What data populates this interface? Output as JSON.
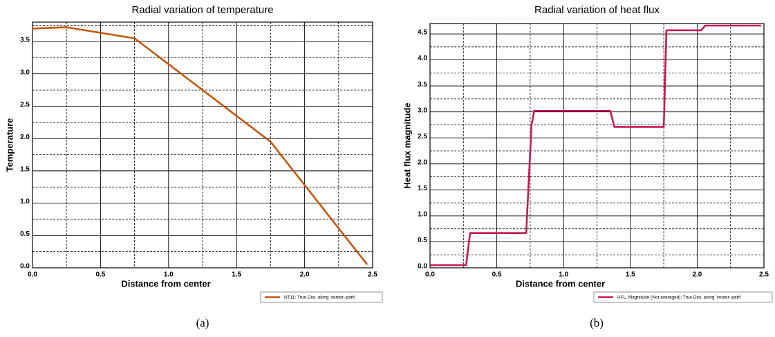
{
  "chart_data": [
    {
      "type": "line",
      "title": "Radial variation of temperature",
      "xlabel": "Distance from center",
      "ylabel": "Temperature",
      "caption": "(a)",
      "x": [
        0,
        0.25,
        0.75,
        1.75,
        2.46
      ],
      "series": [
        {
          "name": "NT11: True Dist. along 'center–path'",
          "color": "#c5560f",
          "values": [
            3.7,
            3.72,
            3.55,
            1.95,
            0.05
          ]
        }
      ],
      "xlim": [
        0,
        2.5
      ],
      "ylim": [
        0,
        3.8
      ],
      "xticks": [
        {
          "value": 0,
          "label": "0.0"
        },
        {
          "value": 0.5,
          "label": "0.5"
        },
        {
          "value": 1,
          "label": "1.0"
        },
        {
          "value": 1.5,
          "label": "1.5"
        },
        {
          "value": 2,
          "label": "2.0"
        },
        {
          "value": 2.5,
          "label": "2.5"
        }
      ],
      "yticks": [
        {
          "value": 0,
          "label": "0.0"
        },
        {
          "value": 0.5,
          "label": "0.5"
        },
        {
          "value": 1,
          "label": "1.0"
        },
        {
          "value": 1.5,
          "label": "1.5"
        },
        {
          "value": 2,
          "label": "2.0"
        },
        {
          "value": 2.5,
          "label": "2.5"
        },
        {
          "value": 3,
          "label": "3.0"
        },
        {
          "value": 3.5,
          "label": "3.5"
        }
      ],
      "xminor": [
        0.25,
        0.75,
        1.25,
        1.75,
        2.25
      ],
      "yminor": [
        0.25,
        0.75,
        1.25,
        1.75,
        2.25,
        2.75,
        3.25,
        3.75
      ],
      "grid": true,
      "legend": "bottom-right"
    },
    {
      "type": "line",
      "title": "Radial variation of heat flux",
      "xlabel": "Distance from center",
      "ylabel": "Heat flux magnitude",
      "caption": "(b)",
      "x": [
        0,
        0.27,
        0.3,
        0.72,
        0.76,
        0.78,
        1.35,
        1.38,
        1.75,
        1.77,
        2.03,
        2.06,
        2.48
      ],
      "series": [
        {
          "name": "HFL, Magnitude (Not averaged): True Dist. along 'center–path'",
          "color": "#c8175a",
          "values": [
            0.05,
            0.05,
            0.67,
            0.67,
            2.75,
            3.02,
            3.02,
            2.71,
            2.71,
            4.57,
            4.57,
            4.66,
            4.66
          ]
        }
      ],
      "xlim": [
        0,
        2.5
      ],
      "ylim": [
        0,
        4.7
      ],
      "xticks": [
        {
          "value": 0,
          "label": "0.0"
        },
        {
          "value": 0.5,
          "label": "0.5"
        },
        {
          "value": 1,
          "label": "1.0"
        },
        {
          "value": 1.5,
          "label": "1.5"
        },
        {
          "value": 2,
          "label": "2.0"
        },
        {
          "value": 2.5,
          "label": "2.5"
        }
      ],
      "yticks": [
        {
          "value": 0,
          "label": "0.0"
        },
        {
          "value": 0.5,
          "label": "0.5"
        },
        {
          "value": 1,
          "label": "1.0"
        },
        {
          "value": 1.5,
          "label": "1.5"
        },
        {
          "value": 2,
          "label": "2.0"
        },
        {
          "value": 2.5,
          "label": "2.5"
        },
        {
          "value": 3,
          "label": "3.0"
        },
        {
          "value": 3.5,
          "label": "3.5"
        },
        {
          "value": 4,
          "label": "4.0"
        },
        {
          "value": 4.5,
          "label": "4.5"
        }
      ],
      "xminor": [
        0.25,
        0.75,
        1.25,
        1.75,
        2.25
      ],
      "yminor": [
        0.25,
        0.75,
        1.25,
        1.75,
        2.25,
        2.75,
        3.25,
        3.75,
        4.25
      ],
      "grid": true,
      "legend": "bottom-right"
    }
  ]
}
